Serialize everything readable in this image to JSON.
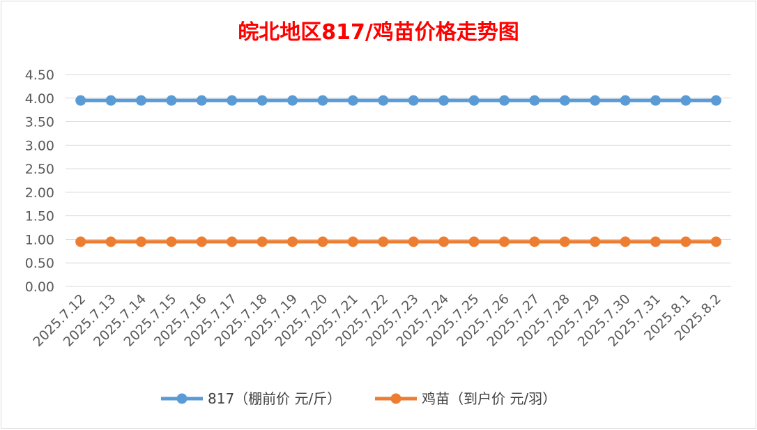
{
  "chart_data": {
    "type": "line",
    "title": "皖北地区817/鸡苗价格走势图",
    "categories": [
      "2025.7.12",
      "2025.7.13",
      "2025.7.14",
      "2025.7.15",
      "2025.7.16",
      "2025.7.17",
      "2025.7.18",
      "2025.7.19",
      "2025.7.20",
      "2025.7.21",
      "2025.7.22",
      "2025.7.23",
      "2025.7.24",
      "2025.7.25",
      "2025.7.26",
      "2025.7.27",
      "2025.7.28",
      "2025.7.29",
      "2025.7.30",
      "2025.7.31",
      "2025.8.1",
      "2025.8.2"
    ],
    "series": [
      {
        "name": "817（棚前价 元/斤）",
        "color": "#5b9bd5",
        "values": [
          3.95,
          3.95,
          3.95,
          3.95,
          3.95,
          3.95,
          3.95,
          3.95,
          3.95,
          3.95,
          3.95,
          3.95,
          3.95,
          3.95,
          3.95,
          3.95,
          3.95,
          3.95,
          3.95,
          3.95,
          3.95,
          3.95
        ]
      },
      {
        "name": "鸡苗（到户价 元/羽）",
        "color": "#ed7d31",
        "values": [
          0.95,
          0.95,
          0.95,
          0.95,
          0.95,
          0.95,
          0.95,
          0.95,
          0.95,
          0.95,
          0.95,
          0.95,
          0.95,
          0.95,
          0.95,
          0.95,
          0.95,
          0.95,
          0.95,
          0.95,
          0.95,
          0.95
        ]
      }
    ],
    "ylim": [
      0,
      4.5
    ],
    "yticks": [
      "0.00",
      "0.50",
      "1.00",
      "1.50",
      "2.00",
      "2.50",
      "3.00",
      "3.50",
      "4.00",
      "4.50"
    ],
    "grid": true,
    "legend": "bottom",
    "title_color": "#ff0000"
  }
}
